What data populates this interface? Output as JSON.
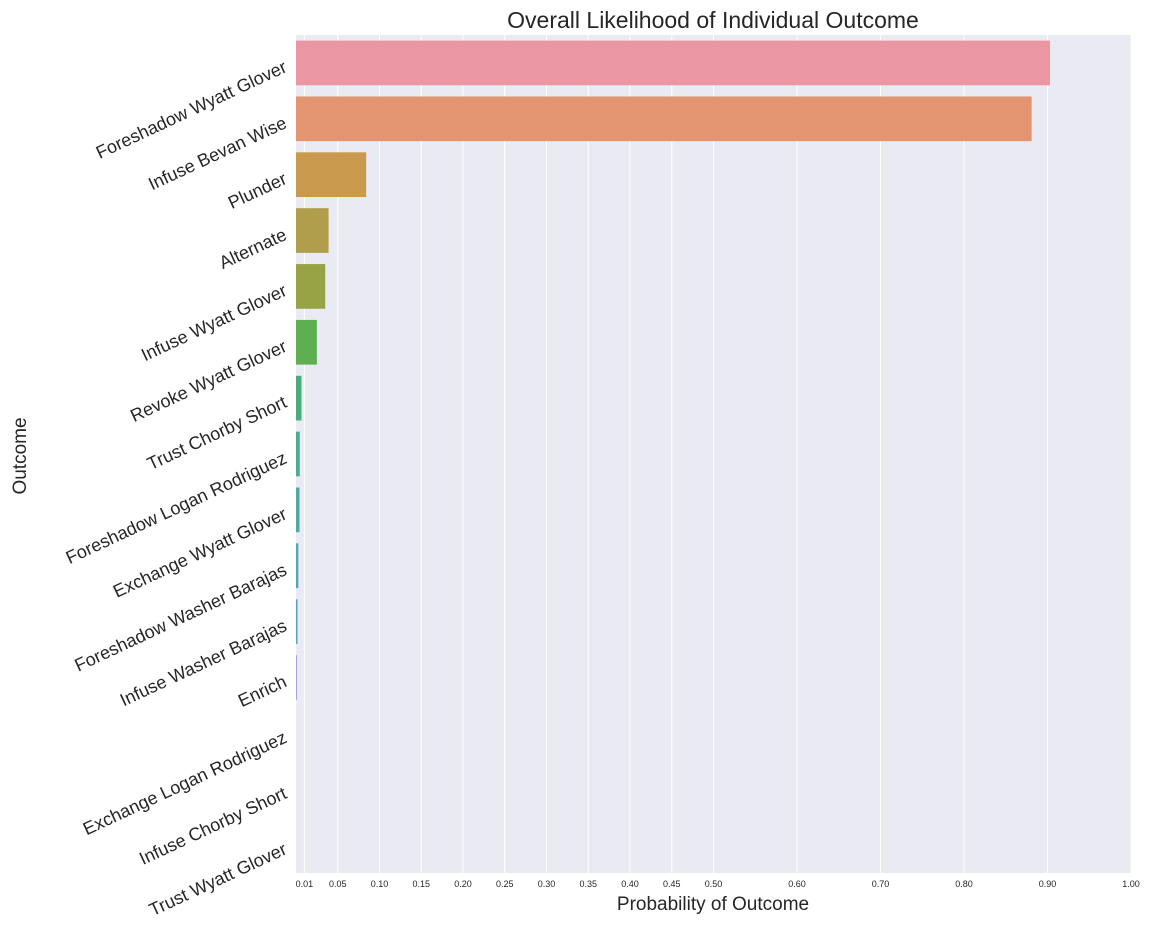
{
  "chart_data": {
    "type": "bar",
    "orientation": "horizontal",
    "title": "Overall Likelihood of Individual Outcome",
    "xlabel": "Probability of Outcome",
    "ylabel": "Outcome",
    "xlim": [
      0,
      1.0
    ],
    "xticks": [
      0.01,
      0.05,
      0.1,
      0.15,
      0.2,
      0.25,
      0.3,
      0.35,
      0.4,
      0.45,
      0.5,
      0.6,
      0.7,
      0.8,
      0.9,
      1.0
    ],
    "xtick_labels": [
      "0.01",
      "0.05",
      "0.10",
      "0.15",
      "0.20",
      "0.25",
      "0.30",
      "0.35",
      "0.40",
      "0.45",
      "0.50",
      "0.60",
      "0.70",
      "0.80",
      "0.90",
      "1.00"
    ],
    "grid": true,
    "categories": [
      "Foreshadow Wyatt Glover",
      "Infuse Bevan Wise",
      "Plunder",
      "Alternate",
      "Infuse Wyatt Glover",
      "Revoke Wyatt Glover",
      "Trust Chorby Short",
      "Foreshadow Logan Rodriguez",
      "Exchange Wyatt Glover",
      "Foreshadow Washer Barajas",
      "Infuse Washer Barajas",
      "Enrich",
      "Exchange Logan Rodriguez",
      "Infuse Chorby Short",
      "Trust Wyatt Glover"
    ],
    "values": [
      0.903,
      0.881,
      0.084,
      0.039,
      0.035,
      0.025,
      0.0065,
      0.0045,
      0.0042,
      0.0028,
      0.0018,
      0.0012,
      0.0,
      0.0,
      0.0
    ],
    "colors": [
      "#ea96a3",
      "#e39470",
      "#c99a4e",
      "#b09e4c",
      "#98a346",
      "#5faf52",
      "#4aab7f",
      "#4caa97",
      "#4eaaa4",
      "#50a9b1",
      "#54a6c2",
      "#a7a2d8",
      "#d095d4",
      "#e08fc6",
      "#e893b2"
    ]
  }
}
